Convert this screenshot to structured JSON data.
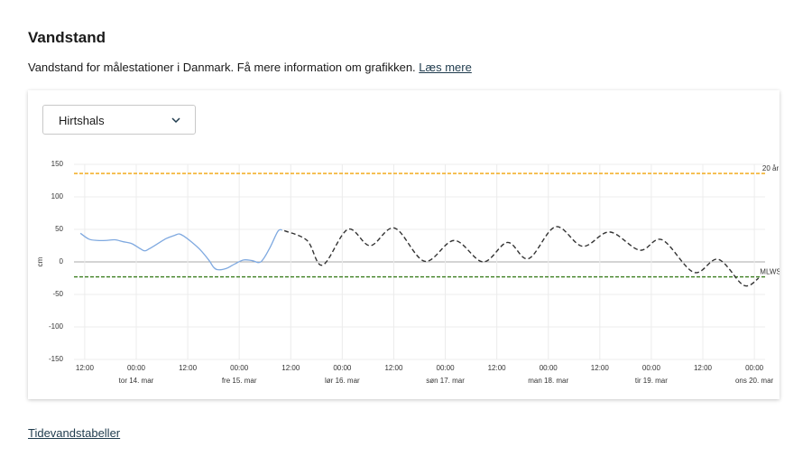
{
  "header": {
    "title": "Vandstand",
    "description": "Vandstand for målestationer i Danmark. Få mere information om grafikken.",
    "link": "Læs mere"
  },
  "select": {
    "value": "Hirtshals"
  },
  "footer": {
    "link": "Tidevandstabeller"
  },
  "chart_data": {
    "type": "line",
    "ylabel": "cm",
    "ylim": [
      -150,
      150
    ],
    "yticks": [
      -150,
      -100,
      -50,
      0,
      50,
      100,
      150
    ],
    "xlim": [
      -14.5,
      146.5
    ],
    "xticks": [
      {
        "value": -12,
        "label": "12:00"
      },
      {
        "value": 0,
        "label": "00:00"
      },
      {
        "value": 12,
        "label": "12:00"
      },
      {
        "value": 24,
        "label": "00:00"
      },
      {
        "value": 36,
        "label": "12:00"
      },
      {
        "value": 48,
        "label": "00:00"
      },
      {
        "value": 60,
        "label": "12:00"
      },
      {
        "value": 72,
        "label": "00:00"
      },
      {
        "value": 84,
        "label": "12:00"
      },
      {
        "value": 96,
        "label": "00:00"
      },
      {
        "value": 108,
        "label": "12:00"
      },
      {
        "value": 120,
        "label": "00:00"
      },
      {
        "value": 132,
        "label": "12:00"
      },
      {
        "value": 144,
        "label": "00:00"
      }
    ],
    "day_labels": [
      {
        "value": 0,
        "label": "tor 14. mar"
      },
      {
        "value": 24,
        "label": "fre 15. mar"
      },
      {
        "value": 48,
        "label": "lør 16. mar"
      },
      {
        "value": 72,
        "label": "søn 17. mar"
      },
      {
        "value": 96,
        "label": "man 18. mar"
      },
      {
        "value": 120,
        "label": "tir 19. mar"
      },
      {
        "value": 144,
        "label": "ons 20. mar"
      }
    ],
    "grid": true,
    "reference_lines": [
      {
        "label": "20 år",
        "value": 136,
        "color": "#f0a30a"
      },
      {
        "label": "MLWS",
        "value": -23,
        "color": "#3a7d1e"
      }
    ],
    "series": [
      {
        "color": "#7fa9e0",
        "dashed": false,
        "x": [
          -13,
          -11,
          -9,
          -7,
          -5,
          -3,
          -1,
          1,
          2,
          3,
          5,
          7,
          9,
          10,
          11,
          13,
          15,
          17,
          18,
          19,
          21,
          23,
          25,
          27,
          29,
          31,
          33,
          34
        ],
        "values": [
          44,
          35,
          33,
          33,
          34,
          31,
          28,
          20,
          17,
          20,
          28,
          36,
          41,
          43,
          40,
          30,
          18,
          2,
          -8,
          -12,
          -10,
          -3,
          3,
          2,
          0,
          20,
          47,
          49
        ]
      },
      {
        "color": "#333333",
        "dashed": true,
        "x": [
          34.5,
          39.8,
          43.4,
          49.3,
          54.5,
          60.2,
          67.2,
          74.1,
          80.8,
          86.5,
          91.4,
          97.7,
          104,
          110.3,
          117.3,
          122.5,
          129.9,
          135.6,
          141.5,
          145
        ],
        "values": [
          48,
          33,
          -5,
          50,
          25,
          52,
          1,
          33,
          0,
          30,
          5,
          54,
          24,
          46,
          18,
          34,
          -16,
          4,
          -36,
          -25
        ]
      }
    ]
  }
}
